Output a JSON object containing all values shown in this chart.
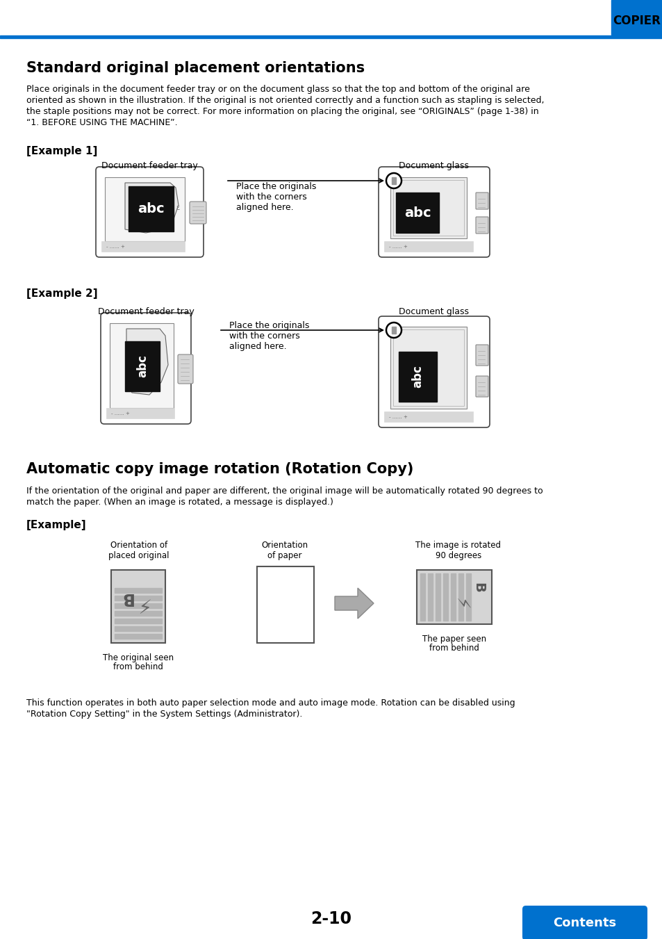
{
  "title_section1": "Standard original placement orientations",
  "body_lines1": [
    "Place originals in the document feeder tray or on the document glass so that the top and bottom of the original are",
    "oriented as shown in the illustration. If the original is not oriented correctly and a function such as stapling is selected,",
    "the staple positions may not be correct. For more information on placing the original, see “ORIGINALS” (page 1-38) in",
    "“1. BEFORE USING THE MACHINE”."
  ],
  "originals_link": "ORIGINALS",
  "example1_label": "[Example 1]",
  "example2_label": "[Example 2]",
  "doc_feeder_label": "Document feeder tray",
  "doc_glass_label": "Document glass",
  "place_text_lines": [
    "Place the originals",
    "with the corners",
    "aligned here."
  ],
  "title_section2": "Automatic copy image rotation (Rotation Copy)",
  "body_lines2": [
    "If the orientation of the original and paper are different, the original image will be automatically rotated 90 degrees to",
    "match the paper. (When an image is rotated, a message is displayed.)"
  ],
  "example_label": "[Example]",
  "orient_placed_line1": "Orientation of",
  "orient_placed_line2": "placed original",
  "orient_paper_line1": "Orientation",
  "orient_paper_line2": "of paper",
  "image_rotated_line1": "The image is rotated",
  "image_rotated_line2": "90 degrees",
  "orig_seen_line1": "The original seen",
  "orig_seen_line2": "from behind",
  "paper_seen_line1": "The paper seen",
  "paper_seen_line2": "from behind",
  "footer_lines": [
    "This function operates in both auto paper selection mode and auto image mode. Rotation can be disabled using",
    "\"Rotation Copy Setting\" in the System Settings (Administrator)."
  ],
  "page_number": "2-10",
  "contents_btn": "Contents",
  "copier_label": "COPIER",
  "header_blue": "#0071CE",
  "link_color": "#0000cc",
  "bg_color": "#ffffff",
  "btn_color": "#0071CE",
  "machine_outer": "#f2f2f2",
  "machine_border": "#444444",
  "machine_inner": "#e0e0e0",
  "doc_black": "#111111",
  "roller_gray": "#c0c0c0",
  "panel_gray": "#d8d8d8",
  "stripe_gray": "#bbbbbb",
  "arrow_gray": "#aaaaaa"
}
